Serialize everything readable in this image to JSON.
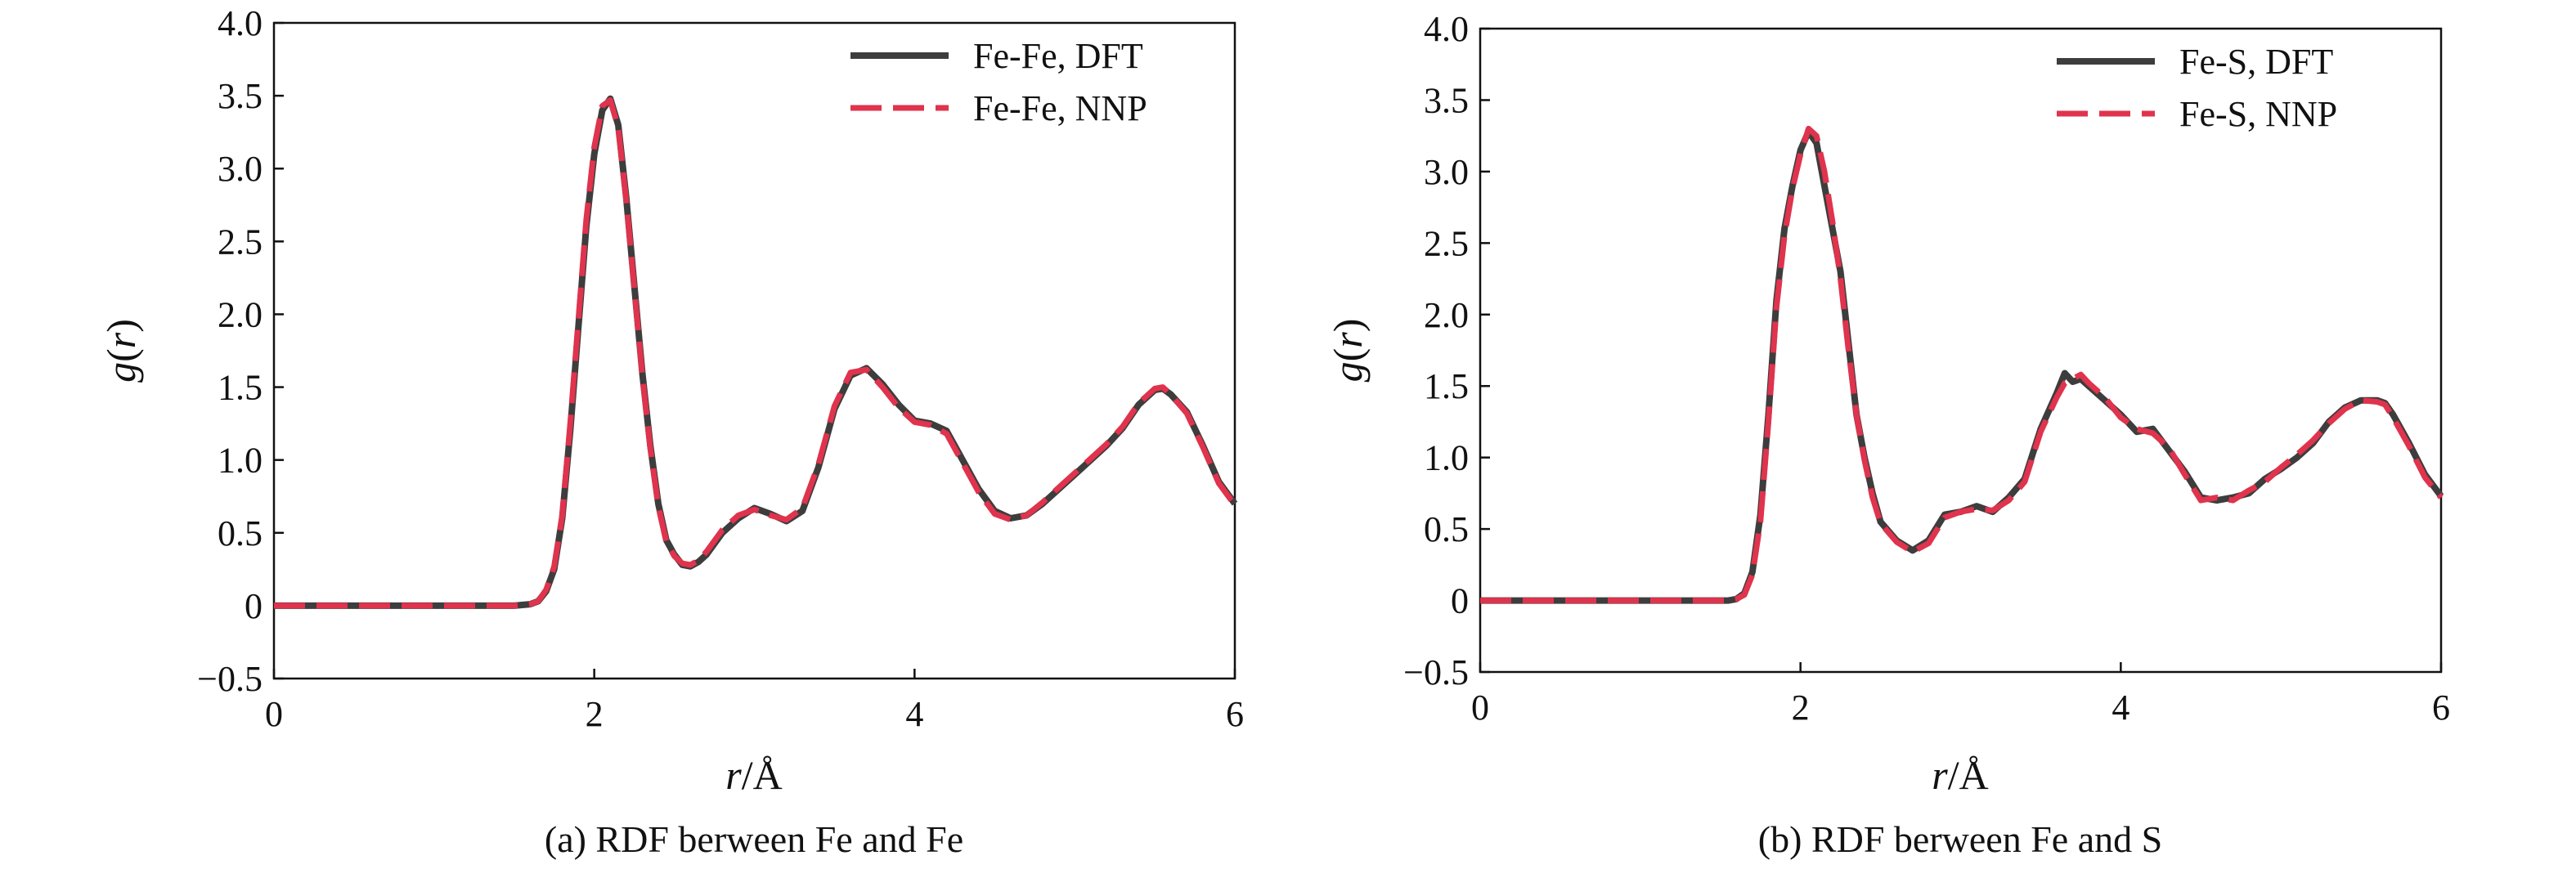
{
  "chart_data": [
    {
      "type": "line",
      "panel": "a",
      "caption": "(a) RDF berween Fe and Fe",
      "xlabel": "r/Å",
      "ylabel": "g(r)",
      "xlim": [
        0,
        6
      ],
      "ylim": [
        -0.5,
        4.0
      ],
      "xticks": [
        0,
        2,
        4,
        6
      ],
      "yticks": [
        -0.5,
        0,
        0.5,
        1.0,
        1.5,
        2.0,
        2.5,
        3.0,
        3.5,
        4.0
      ],
      "ytick_labels": [
        "−0.5",
        "0",
        "0.5",
        "1.0",
        "1.5",
        "2.0",
        "2.5",
        "3.0",
        "3.5",
        "4.0"
      ],
      "grid": false,
      "legend_position": "top-right",
      "series": [
        {
          "name": "Fe-Fe, DFT",
          "color": "#3d3d3d",
          "style": "solid",
          "x": [
            0,
            1.5,
            1.6,
            1.65,
            1.7,
            1.75,
            1.8,
            1.85,
            1.9,
            1.95,
            2.0,
            2.05,
            2.1,
            2.15,
            2.2,
            2.25,
            2.3,
            2.35,
            2.4,
            2.45,
            2.5,
            2.55,
            2.6,
            2.65,
            2.7,
            2.8,
            2.9,
            3.0,
            3.1,
            3.2,
            3.3,
            3.4,
            3.5,
            3.6,
            3.7,
            3.8,
            3.9,
            4.0,
            4.1,
            4.2,
            4.3,
            4.4,
            4.5,
            4.6,
            4.7,
            4.8,
            4.9,
            5.0,
            5.1,
            5.2,
            5.3,
            5.4,
            5.5,
            5.55,
            5.6,
            5.7,
            5.8,
            5.9,
            6.0
          ],
          "y": [
            0,
            0,
            0.01,
            0.03,
            0.1,
            0.25,
            0.6,
            1.2,
            1.9,
            2.6,
            3.1,
            3.4,
            3.48,
            3.3,
            2.8,
            2.2,
            1.6,
            1.1,
            0.7,
            0.45,
            0.35,
            0.28,
            0.27,
            0.3,
            0.35,
            0.5,
            0.6,
            0.67,
            0.63,
            0.58,
            0.65,
            0.95,
            1.35,
            1.58,
            1.63,
            1.52,
            1.38,
            1.27,
            1.25,
            1.2,
            1.0,
            0.8,
            0.65,
            0.6,
            0.62,
            0.7,
            0.8,
            0.9,
            1.0,
            1.1,
            1.22,
            1.38,
            1.48,
            1.49,
            1.45,
            1.33,
            1.1,
            0.85,
            0.7
          ]
        },
        {
          "name": "Fe-Fe, NNP",
          "color": "#e0334d",
          "style": "dashed",
          "x": [
            0,
            1.5,
            1.6,
            1.65,
            1.7,
            1.75,
            1.8,
            1.85,
            1.9,
            1.95,
            2.0,
            2.05,
            2.1,
            2.15,
            2.2,
            2.25,
            2.3,
            2.35,
            2.4,
            2.45,
            2.5,
            2.55,
            2.6,
            2.65,
            2.7,
            2.8,
            2.9,
            3.0,
            3.1,
            3.2,
            3.3,
            3.4,
            3.5,
            3.6,
            3.7,
            3.8,
            3.9,
            4.0,
            4.1,
            4.2,
            4.3,
            4.4,
            4.5,
            4.6,
            4.7,
            4.8,
            4.9,
            5.0,
            5.1,
            5.2,
            5.3,
            5.4,
            5.5,
            5.55,
            5.6,
            5.7,
            5.8,
            5.9,
            6.0
          ],
          "y": [
            0,
            0,
            0.01,
            0.03,
            0.11,
            0.27,
            0.62,
            1.25,
            1.95,
            2.65,
            3.15,
            3.43,
            3.47,
            3.28,
            2.78,
            2.18,
            1.58,
            1.08,
            0.68,
            0.44,
            0.34,
            0.29,
            0.28,
            0.31,
            0.37,
            0.52,
            0.62,
            0.66,
            0.62,
            0.59,
            0.67,
            0.97,
            1.37,
            1.6,
            1.62,
            1.5,
            1.36,
            1.26,
            1.24,
            1.18,
            0.98,
            0.78,
            0.63,
            0.59,
            0.62,
            0.71,
            0.81,
            0.91,
            1.01,
            1.11,
            1.23,
            1.39,
            1.49,
            1.5,
            1.45,
            1.32,
            1.09,
            0.84,
            0.69
          ]
        }
      ]
    },
    {
      "type": "line",
      "panel": "b",
      "caption": "(b) RDF berween Fe and S",
      "xlabel": "r/Å",
      "ylabel": "g(r)",
      "xlim": [
        0,
        6
      ],
      "ylim": [
        -0.5,
        4.0
      ],
      "xticks": [
        0,
        2,
        4,
        6
      ],
      "yticks": [
        -0.5,
        0,
        0.5,
        1.0,
        1.5,
        2.0,
        2.5,
        3.0,
        3.5,
        4.0
      ],
      "ytick_labels": [
        "−0.5",
        "0",
        "0.5",
        "1.0",
        "1.5",
        "2.0",
        "2.5",
        "3.0",
        "3.5",
        "4.0"
      ],
      "grid": false,
      "legend_position": "top-right",
      "series": [
        {
          "name": "Fe-S, DFT",
          "color": "#3d3d3d",
          "style": "solid",
          "x": [
            0,
            1.55,
            1.6,
            1.65,
            1.7,
            1.75,
            1.8,
            1.85,
            1.9,
            1.95,
            2.0,
            2.05,
            2.1,
            2.15,
            2.2,
            2.25,
            2.3,
            2.35,
            2.4,
            2.45,
            2.5,
            2.6,
            2.7,
            2.8,
            2.9,
            3.0,
            3.1,
            3.2,
            3.3,
            3.4,
            3.5,
            3.6,
            3.65,
            3.7,
            3.75,
            3.8,
            3.9,
            4.0,
            4.1,
            4.2,
            4.3,
            4.4,
            4.5,
            4.6,
            4.7,
            4.8,
            4.9,
            5.0,
            5.1,
            5.2,
            5.3,
            5.4,
            5.5,
            5.6,
            5.65,
            5.7,
            5.8,
            5.9,
            6.0
          ],
          "y": [
            0,
            0,
            0.01,
            0.05,
            0.2,
            0.6,
            1.3,
            2.1,
            2.6,
            2.9,
            3.15,
            3.28,
            3.2,
            2.9,
            2.6,
            2.3,
            1.8,
            1.3,
            1.0,
            0.75,
            0.55,
            0.42,
            0.35,
            0.42,
            0.6,
            0.62,
            0.66,
            0.62,
            0.72,
            0.85,
            1.2,
            1.45,
            1.59,
            1.53,
            1.55,
            1.5,
            1.4,
            1.3,
            1.18,
            1.2,
            1.05,
            0.9,
            0.72,
            0.7,
            0.72,
            0.75,
            0.85,
            0.92,
            1.0,
            1.1,
            1.25,
            1.35,
            1.4,
            1.4,
            1.38,
            1.3,
            1.1,
            0.88,
            0.73
          ]
        },
        {
          "name": "Fe-S, NNP",
          "color": "#e0334d",
          "style": "dashed",
          "x": [
            0,
            1.55,
            1.6,
            1.65,
            1.7,
            1.75,
            1.8,
            1.85,
            1.9,
            1.95,
            2.0,
            2.05,
            2.1,
            2.15,
            2.2,
            2.25,
            2.3,
            2.35,
            2.4,
            2.45,
            2.5,
            2.6,
            2.7,
            2.8,
            2.9,
            3.0,
            3.1,
            3.2,
            3.3,
            3.4,
            3.5,
            3.6,
            3.65,
            3.7,
            3.75,
            3.8,
            3.9,
            4.0,
            4.1,
            4.2,
            4.3,
            4.4,
            4.5,
            4.6,
            4.7,
            4.8,
            4.9,
            5.0,
            5.1,
            5.2,
            5.3,
            5.4,
            5.5,
            5.6,
            5.65,
            5.7,
            5.8,
            5.9,
            6.0
          ],
          "y": [
            0,
            0,
            0.01,
            0.04,
            0.18,
            0.55,
            1.25,
            2.05,
            2.55,
            2.88,
            3.12,
            3.3,
            3.25,
            3.0,
            2.65,
            2.25,
            1.75,
            1.3,
            0.98,
            0.72,
            0.54,
            0.41,
            0.34,
            0.4,
            0.58,
            0.62,
            0.64,
            0.63,
            0.7,
            0.83,
            1.18,
            1.42,
            1.52,
            1.55,
            1.58,
            1.52,
            1.42,
            1.28,
            1.2,
            1.17,
            1.07,
            0.88,
            0.7,
            0.72,
            0.7,
            0.77,
            0.83,
            0.93,
            1.02,
            1.12,
            1.24,
            1.34,
            1.4,
            1.39,
            1.37,
            1.28,
            1.08,
            0.86,
            0.72
          ]
        }
      ]
    }
  ]
}
